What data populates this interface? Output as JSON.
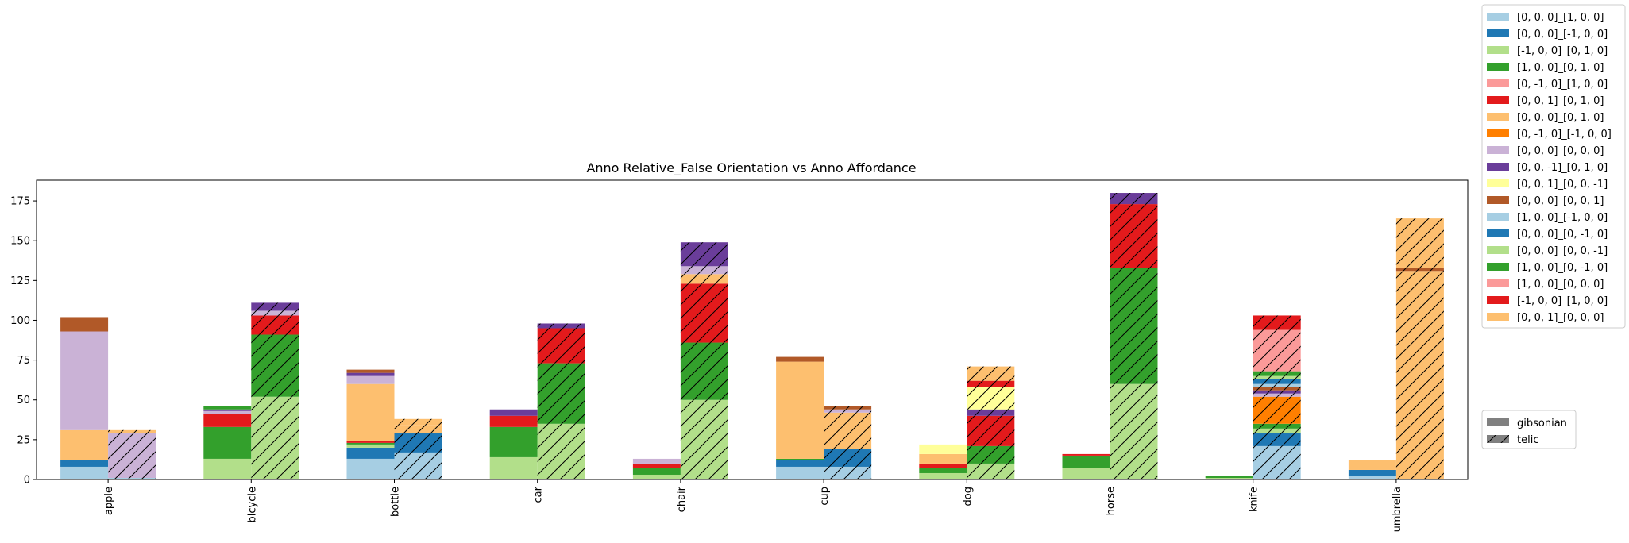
{
  "chart_data": {
    "type": "bar",
    "title": "Anno Relative_False Orientation vs Anno Affordance",
    "xlabel": "",
    "ylabel": "",
    "ylim": [
      0,
      188
    ],
    "yticks": [
      0,
      25,
      50,
      75,
      100,
      125,
      150,
      175
    ],
    "categories": [
      "apple",
      "bicycle",
      "bottle",
      "car",
      "chair",
      "cup",
      "dog",
      "horse",
      "knife",
      "umbrella"
    ],
    "bar_groups": [
      {
        "name": "gibsonian",
        "hatch": "none"
      },
      {
        "name": "telic",
        "hatch": "diagonal"
      }
    ],
    "series": [
      {
        "name": "[0, 0, 0]_[1, 0, 0]",
        "color": "#a6cee3",
        "gibsonian": [
          8,
          0,
          13,
          0,
          0,
          8,
          0,
          0,
          0,
          2
        ],
        "telic": [
          1,
          0,
          17,
          0,
          0,
          8,
          0,
          0,
          21,
          0
        ]
      },
      {
        "name": "[0, 0, 0]_[-1, 0, 0]",
        "color": "#1f78b4",
        "gibsonian": [
          4,
          0,
          7,
          0,
          0,
          4,
          0,
          0,
          0,
          4
        ],
        "telic": [
          0,
          0,
          12,
          0,
          0,
          11,
          0,
          0,
          8,
          0
        ]
      },
      {
        "name": "[-1, 0, 0]_[0, 1, 0]",
        "color": "#b2df8a",
        "gibsonian": [
          0,
          13,
          2,
          14,
          3,
          0,
          4,
          7,
          1,
          0
        ],
        "telic": [
          0,
          52,
          0,
          35,
          50,
          0,
          10,
          60,
          3,
          0
        ]
      },
      {
        "name": "[1, 0, 0]_[0, 1, 0]",
        "color": "#33a02c",
        "gibsonian": [
          0,
          20,
          1,
          19,
          4,
          1,
          3,
          8,
          1,
          0
        ],
        "telic": [
          0,
          39,
          0,
          38,
          36,
          0,
          11,
          73,
          3,
          0
        ]
      },
      {
        "name": "[0, -1, 0]_[1, 0, 0]",
        "color": "#fb9a99",
        "gibsonian": [
          0,
          0,
          0,
          0,
          0,
          0,
          0,
          0,
          0,
          0
        ],
        "telic": [
          0,
          0,
          0,
          0,
          0,
          0,
          0,
          0,
          0,
          0
        ]
      },
      {
        "name": "[0, 0, 1]_[0, 1, 0]",
        "color": "#e31a1c",
        "gibsonian": [
          0,
          8,
          1,
          7,
          3,
          0,
          3,
          1,
          0,
          0
        ],
        "telic": [
          0,
          12,
          0,
          22,
          37,
          0,
          19,
          40,
          0,
          0
        ]
      },
      {
        "name": "[0, 0, 0]_[0, 1, 0]",
        "color": "#fdbf6f",
        "gibsonian": [
          19,
          0,
          36,
          0,
          0,
          61,
          6,
          0,
          0,
          6
        ],
        "telic": [
          0,
          0,
          5,
          0,
          6,
          23,
          0,
          0,
          0,
          131
        ]
      },
      {
        "name": "[0, -1, 0]_[-1, 0, 0]",
        "color": "#ff7f00",
        "gibsonian": [
          0,
          0,
          0,
          0,
          0,
          0,
          0,
          0,
          0,
          0
        ],
        "telic": [
          0,
          0,
          0,
          0,
          0,
          0,
          0,
          0,
          17,
          0
        ]
      },
      {
        "name": "[0, 0, 0]_[0, 0, 0]",
        "color": "#cab2d6",
        "gibsonian": [
          62,
          2,
          5,
          0,
          3,
          0,
          0,
          0,
          0,
          0
        ],
        "telic": [
          28,
          3,
          0,
          0,
          5,
          2,
          0,
          0,
          2,
          0
        ]
      },
      {
        "name": "[0, 0, -1]_[0, 1, 0]",
        "color": "#6a3d9a",
        "gibsonian": [
          0,
          1,
          2,
          4,
          0,
          0,
          0,
          0,
          0,
          0
        ],
        "telic": [
          0,
          5,
          0,
          3,
          15,
          0,
          4,
          7,
          2,
          0
        ]
      },
      {
        "name": "[0, 0, 1]_[0, 0, -1]",
        "color": "#ffff99",
        "gibsonian": [
          0,
          0,
          0,
          0,
          0,
          0,
          6,
          0,
          0,
          0
        ],
        "telic": [
          0,
          0,
          0,
          0,
          0,
          0,
          14,
          0,
          0,
          0
        ]
      },
      {
        "name": "[0, 0, 0]_[0, 0, 1]",
        "color": "#b15928",
        "gibsonian": [
          9,
          0,
          2,
          0,
          0,
          3,
          0,
          0,
          0,
          0
        ],
        "telic": [
          0,
          0,
          0,
          0,
          0,
          2,
          0,
          0,
          2,
          2
        ]
      },
      {
        "name": "[1, 0, 0]_[-1, 0, 0]",
        "color": "#a6cee3",
        "gibsonian": [
          0,
          0,
          0,
          0,
          0,
          0,
          0,
          0,
          0,
          0
        ],
        "telic": [
          0,
          0,
          0,
          0,
          0,
          0,
          0,
          0,
          2,
          0
        ]
      },
      {
        "name": "[0, 0, 0]_[0, -1, 0]",
        "color": "#1f78b4",
        "gibsonian": [
          0,
          0,
          0,
          0,
          0,
          0,
          0,
          0,
          0,
          0
        ],
        "telic": [
          0,
          0,
          0,
          0,
          0,
          0,
          0,
          0,
          3,
          0
        ]
      },
      {
        "name": "[0, 0, 0]_[0, 0, -1]",
        "color": "#b2df8a",
        "gibsonian": [
          0,
          0,
          0,
          0,
          0,
          0,
          0,
          0,
          0,
          0
        ],
        "telic": [
          0,
          0,
          0,
          0,
          0,
          0,
          0,
          0,
          2,
          0
        ]
      },
      {
        "name": "[1, 0, 0]_[0, -1, 0]",
        "color": "#33a02c",
        "gibsonian": [
          0,
          2,
          0,
          0,
          0,
          0,
          0,
          0,
          0,
          0
        ],
        "telic": [
          0,
          0,
          0,
          0,
          0,
          0,
          0,
          0,
          3,
          0
        ]
      },
      {
        "name": "[1, 0, 0]_[0, 0, 0]",
        "color": "#fb9a99",
        "gibsonian": [
          0,
          0,
          0,
          0,
          0,
          0,
          0,
          0,
          0,
          0
        ],
        "telic": [
          0,
          0,
          0,
          0,
          0,
          0,
          0,
          0,
          26,
          0
        ]
      },
      {
        "name": "[-1, 0, 0]_[1, 0, 0]",
        "color": "#e31a1c",
        "gibsonian": [
          0,
          0,
          0,
          0,
          0,
          0,
          0,
          0,
          0,
          0
        ],
        "telic": [
          0,
          0,
          0,
          0,
          0,
          0,
          4,
          0,
          9,
          0
        ]
      },
      {
        "name": "[0, 0, 1]_[0, 0, 0]",
        "color": "#fdbf6f",
        "gibsonian": [
          0,
          0,
          0,
          0,
          0,
          0,
          0,
          0,
          0,
          0
        ],
        "telic": [
          2,
          0,
          4,
          0,
          0,
          0,
          9,
          0,
          0,
          31
        ]
      }
    ],
    "legend": {
      "placement": "right-outside"
    },
    "grid": false
  }
}
